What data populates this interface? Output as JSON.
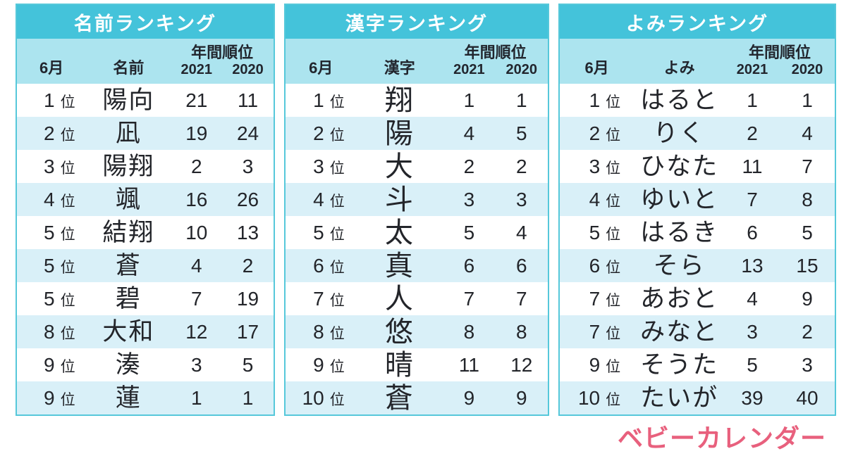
{
  "labels": {
    "rank_suffix": "位"
  },
  "chart_data": [
    {
      "type": "table",
      "title": "名前ランキング",
      "column_group_header": "年間順位",
      "columns": [
        "6月",
        "名前",
        "2021",
        "2020"
      ],
      "rows": [
        [
          "1",
          "陽向",
          "21",
          "11"
        ],
        [
          "2",
          "凪",
          "19",
          "24"
        ],
        [
          "3",
          "陽翔",
          "2",
          "3"
        ],
        [
          "4",
          "颯",
          "16",
          "26"
        ],
        [
          "5",
          "結翔",
          "10",
          "13"
        ],
        [
          "5",
          "蒼",
          "4",
          "2"
        ],
        [
          "5",
          "碧",
          "7",
          "19"
        ],
        [
          "8",
          "大和",
          "12",
          "17"
        ],
        [
          "9",
          "湊",
          "3",
          "5"
        ],
        [
          "9",
          "蓮",
          "1",
          "1"
        ]
      ]
    },
    {
      "type": "table",
      "title": "漢字ランキング",
      "column_group_header": "年間順位",
      "columns": [
        "6月",
        "漢字",
        "2021",
        "2020"
      ],
      "rows": [
        [
          "1",
          "翔",
          "1",
          "1"
        ],
        [
          "2",
          "陽",
          "4",
          "5"
        ],
        [
          "3",
          "大",
          "2",
          "2"
        ],
        [
          "4",
          "斗",
          "3",
          "3"
        ],
        [
          "5",
          "太",
          "5",
          "4"
        ],
        [
          "6",
          "真",
          "6",
          "6"
        ],
        [
          "7",
          "人",
          "7",
          "7"
        ],
        [
          "8",
          "悠",
          "8",
          "8"
        ],
        [
          "9",
          "晴",
          "11",
          "12"
        ],
        [
          "10",
          "蒼",
          "9",
          "9"
        ]
      ]
    },
    {
      "type": "table",
      "title": "よみランキング",
      "column_group_header": "年間順位",
      "columns": [
        "6月",
        "よみ",
        "2021",
        "2020"
      ],
      "rows": [
        [
          "1",
          "はると",
          "1",
          "1"
        ],
        [
          "2",
          "りく",
          "2",
          "4"
        ],
        [
          "3",
          "ひなた",
          "11",
          "7"
        ],
        [
          "4",
          "ゆいと",
          "7",
          "8"
        ],
        [
          "5",
          "はるき",
          "6",
          "5"
        ],
        [
          "6",
          "そら",
          "13",
          "15"
        ],
        [
          "7",
          "あおと",
          "4",
          "9"
        ],
        [
          "7",
          "みなと",
          "3",
          "2"
        ],
        [
          "9",
          "そうた",
          "5",
          "3"
        ],
        [
          "10",
          "たいが",
          "39",
          "40"
        ]
      ]
    }
  ],
  "logo": {
    "text": "ベビーカレンダー",
    "color": "#e8607d"
  },
  "colors": {
    "title_bar": "#44c3da",
    "header_bg": "#ace4ef",
    "alt_row_bg": "#d9f0f8",
    "table_border": "#56c8da",
    "body_text": "#23252a",
    "header_text": "#22262e",
    "title_text": "#ffffff",
    "logo_pink": "#e8607d"
  }
}
